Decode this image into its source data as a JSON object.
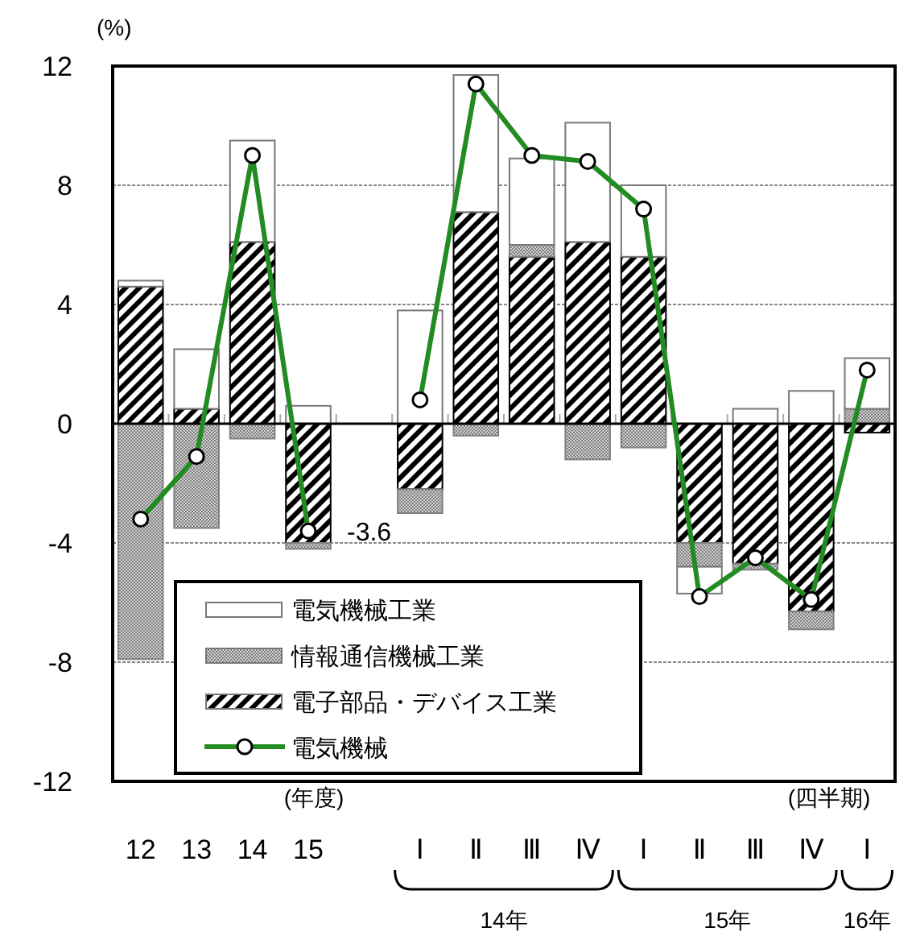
{
  "chart_data": {
    "type": "bar",
    "stacked": true,
    "ylabel": "(%)",
    "categories": [
      "12",
      "13",
      "14",
      "15",
      null,
      "Ⅰ",
      "Ⅱ",
      "Ⅲ",
      "Ⅳ",
      "Ⅰ",
      "Ⅱ",
      "Ⅲ",
      "Ⅳ",
      "Ⅰ"
    ],
    "series": [
      {
        "name": "電子部品・デバイス工業",
        "color": "#000000",
        "values": [
          4.6,
          0.5,
          6.1,
          -4.0,
          null,
          -2.2,
          7.1,
          5.6,
          6.1,
          5.6,
          -4.0,
          -4.7,
          -6.3,
          -0.3
        ]
      },
      {
        "name": "情報通信機械工業",
        "color": "#808080",
        "values": [
          -7.9,
          -3.5,
          -0.5,
          -0.2,
          null,
          -0.8,
          -0.4,
          0.4,
          -1.2,
          -0.8,
          -0.8,
          -0.2,
          -0.6,
          0.5
        ]
      },
      {
        "name": "電気機械工業",
        "color": "#ffffff",
        "values": [
          0.2,
          2.0,
          3.4,
          0.6,
          null,
          3.8,
          4.6,
          2.9,
          4.0,
          2.4,
          -0.9,
          0.5,
          1.1,
          1.7
        ]
      },
      {
        "name": "電気機械",
        "type": "line",
        "color": "#228b22",
        "values": [
          -3.2,
          -1.1,
          9.0,
          -3.6,
          null,
          0.8,
          11.4,
          9.0,
          8.8,
          7.2,
          -5.8,
          -4.5,
          -5.9,
          1.8
        ]
      }
    ],
    "ylim": [
      -12,
      12
    ],
    "yticks": [
      -12,
      -8,
      -4,
      0,
      4,
      8,
      12
    ],
    "grid": "y",
    "legend": "bottom left",
    "marker": "circle",
    "annotations": [
      {
        "text": "-3.6",
        "x": "15",
        "y": -3.6
      },
      "(年度)",
      "(四半期)",
      "14年",
      "15年",
      "16年"
    ]
  }
}
